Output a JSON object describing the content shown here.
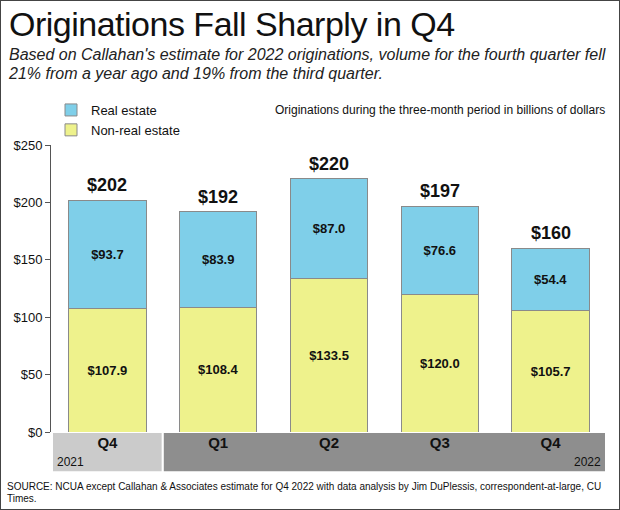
{
  "chart_data": {
    "type": "bar",
    "title": "Originations Fall Sharply in Q4",
    "subtitle": "Based on Callahan's estimate for 2022 originations, volume for the fourth quarter fell 21% from a year ago and 19% from the third quarter.",
    "annotation": "Originations during the three-month period in billions of dollars",
    "source": "SOURCE: NCUA except Callahan & Associates estimate for Q4 2022 with data analysis by Jim DuPlessis, correspondent-at-large, CU Times.",
    "categories": [
      "Q4",
      "Q1",
      "Q2",
      "Q3",
      "Q4"
    ],
    "groups": [
      "2021",
      "2022",
      "2022",
      "2022",
      "2022"
    ],
    "series": [
      {
        "name": "Non-real estate",
        "color": "#eef28c",
        "values": [
          107.9,
          108.4,
          133.5,
          120.0,
          105.7
        ],
        "value_labels": [
          "$107.9",
          "$108.4",
          "$133.5",
          "$120.0",
          "$105.7"
        ]
      },
      {
        "name": "Real estate",
        "color": "#7fcfe9",
        "values": [
          93.7,
          83.9,
          87.0,
          76.6,
          54.4
        ],
        "value_labels": [
          "$93.7",
          "$83.9",
          "$87.0",
          "$76.6",
          "$54.4"
        ]
      }
    ],
    "totals": {
      "values": [
        202,
        192,
        220,
        197,
        160
      ],
      "value_labels": [
        "$202",
        "$192",
        "$220",
        "$197",
        "$160"
      ]
    },
    "ylim": [
      0,
      250
    ],
    "yticks": [
      {
        "value": 0,
        "label": "$0"
      },
      {
        "value": 50,
        "label": "$50"
      },
      {
        "value": 100,
        "label": "$100"
      },
      {
        "value": 150,
        "label": "$150"
      },
      {
        "value": 200,
        "label": "$200"
      },
      {
        "value": 250,
        "label": "$250"
      }
    ],
    "stacked": true,
    "data_labels": true,
    "grid": false,
    "legend": "top left"
  }
}
